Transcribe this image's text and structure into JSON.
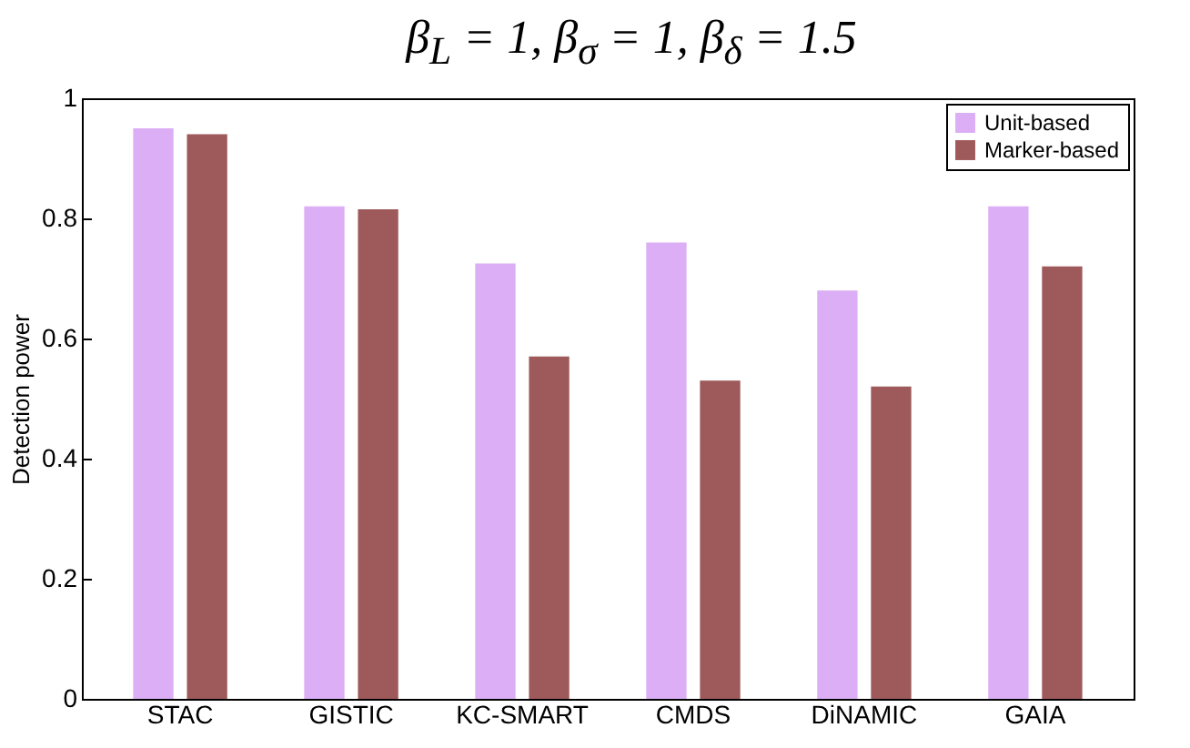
{
  "chart_data": {
    "type": "bar",
    "title": "β$_{L}$ = 1,  β$_{σ}$ = 1,  β$_{δ}$ = 1.5",
    "ylabel": "Detection power",
    "categories": [
      "STAC",
      "GISTIC",
      "KC-SMART",
      "CMDS",
      "DiNAMIC",
      "GAIA"
    ],
    "series": [
      {
        "name": "Unit-based",
        "color": "#dcaef5",
        "values": [
          0.95,
          0.82,
          0.725,
          0.76,
          0.68,
          0.82
        ]
      },
      {
        "name": "Marker-based",
        "color": "#9e5a5a",
        "values": [
          0.94,
          0.815,
          0.57,
          0.53,
          0.52,
          0.72
        ]
      }
    ],
    "ylim": [
      0,
      1
    ],
    "yticks": [
      0,
      0.2,
      0.4,
      0.6,
      0.8,
      1
    ],
    "grid": false,
    "legend": "top right"
  }
}
